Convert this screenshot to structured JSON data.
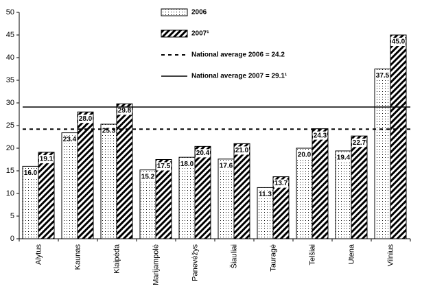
{
  "chart_data": {
    "type": "bar",
    "categories": [
      "Alytus",
      "Kaunas",
      "Klaipėda",
      "Marijampolė",
      "Panevėžys",
      "Šiauliai",
      "Tauragė",
      "Telšiai",
      "Utena",
      "Vilnius"
    ],
    "series": [
      {
        "name": "2006",
        "pattern": "dots",
        "color": "#000000",
        "values": [
          16.0,
          23.4,
          25.3,
          15.2,
          18.0,
          17.6,
          11.3,
          20.0,
          19.4,
          37.5
        ],
        "value_labels": [
          "16.0",
          "23.4",
          "25.3",
          "15.2",
          "18.0",
          "17.6",
          "11.3",
          "20.0",
          "19.4",
          "37.5"
        ]
      },
      {
        "name": "2007¹",
        "pattern": "hatch",
        "color": "#000000",
        "values": [
          19.1,
          28.0,
          29.8,
          17.5,
          20.4,
          21.0,
          13.7,
          24.3,
          22.7,
          45.0
        ],
        "value_labels": [
          "19.1",
          "28.0",
          "29.8",
          "17.5",
          "20.4",
          "21.0",
          "13.7",
          "24.3",
          "22.7",
          "45.0"
        ]
      }
    ],
    "reference_lines": [
      {
        "name": "National average 2006 = 24.2",
        "value": 24.2,
        "style": "dashed"
      },
      {
        "name": "National average 2007 = 29.1¹",
        "value": 29.1,
        "style": "solid"
      }
    ],
    "ylim": [
      0,
      50
    ],
    "yticks": [
      0,
      5,
      10,
      15,
      20,
      25,
      30,
      35,
      40,
      45,
      50
    ],
    "grid": false
  }
}
